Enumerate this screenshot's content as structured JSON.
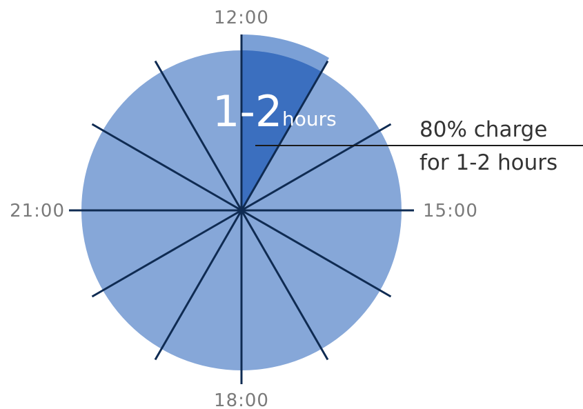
{
  "clock": {
    "labels": {
      "top": "12:00",
      "right": "15:00",
      "bottom": "18:00",
      "left": "21:00"
    },
    "tick_count": 12,
    "colors": {
      "disc": "#86a7d8",
      "highlight": "#3b6fbf",
      "highlight_outer": "#7ba0d6",
      "lines": "#0f2b52"
    }
  },
  "highlight": {
    "big": "1-2",
    "small": "hours",
    "duration_hours": [
      1,
      2
    ]
  },
  "callout": {
    "line1": "80% charge",
    "line2": "for 1-2 hours"
  }
}
